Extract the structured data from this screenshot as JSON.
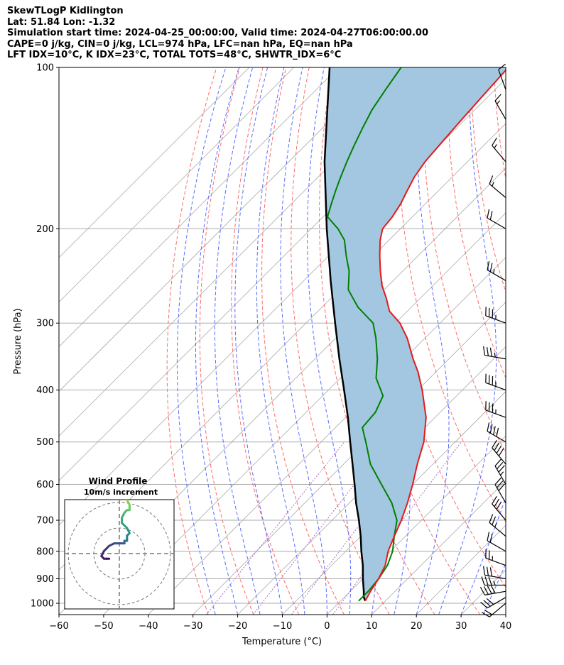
{
  "header": {
    "line1": "SkewTLogP Kidlington",
    "line2": "Lat: 51.84   Lon: -1.32",
    "line3": "Simulation start time: 2024-04-25_00:00:00, Valid time: 2024-04-27T06:00:00.00",
    "line4": "CAPE=0 j/kg, CIN=0 j/kg, LCL=974 hPa, LFC=nan hPa, EQ=nan hPa",
    "line5": "LFT IDX=10°C, K IDX=23°C, TOTAL TOTS=48°C, SHWTR_IDX=6°C"
  },
  "colors": {
    "temperature": "#e31a1c",
    "dewpoint": "#008000",
    "parcel": "#000000",
    "cape_fill": "#a3c7e0",
    "dry_adiabat": "#ff6a6a",
    "moist_adiabat": "#5a6cff",
    "mixing_ratio": "#b070c8",
    "isotherm": "#aaaaaa"
  },
  "chart_data": {
    "type": "line",
    "title": "",
    "xlabel": "Temperature (°C)",
    "ylabel": "Pressure (hPa)",
    "xlim": [
      -60,
      40
    ],
    "ylim": [
      1050,
      100
    ],
    "yscale": "log",
    "skew": true,
    "grid": true,
    "x_ticks": [
      "−60",
      "−50",
      "−40",
      "−30",
      "−20",
      "−10",
      "0",
      "10",
      "20",
      "30",
      "40"
    ],
    "x_tick_values": [
      -60,
      -50,
      -40,
      -30,
      -20,
      -10,
      0,
      10,
      20,
      30,
      40
    ],
    "y_ticks": [
      "100",
      "200",
      "300",
      "400",
      "500",
      "600",
      "700",
      "800",
      "900",
      "1000"
    ],
    "y_tick_values": [
      100,
      200,
      300,
      400,
      500,
      600,
      700,
      800,
      900,
      1000
    ],
    "series": [
      {
        "key": "temperature",
        "pressure": [
          990,
          950,
          900,
          850,
          800,
          750,
          700,
          650,
          600,
          550,
          500,
          450,
          400,
          370,
          350,
          320,
          300,
          285,
          270,
          255,
          240,
          225,
          210,
          200,
          190,
          180,
          170,
          160,
          150,
          140,
          130,
          120,
          110,
          100
        ],
        "values": [
          5.5,
          4.5,
          3.5,
          2.0,
          -0.5,
          -2.5,
          -4.5,
          -7.0,
          -10.0,
          -13.5,
          -17.0,
          -22.0,
          -29.0,
          -34.0,
          -38.0,
          -44.0,
          -49.0,
          -54.0,
          -57.5,
          -61.5,
          -65.0,
          -68.5,
          -72.0,
          -74.0,
          -74.5,
          -75.5,
          -77.0,
          -78.5,
          -79.5,
          -80.0,
          -80.5,
          -81.0,
          -81.5,
          -82.0
        ]
      },
      {
        "key": "dewpoint",
        "pressure": [
          990,
          950,
          900,
          850,
          800,
          750,
          700,
          650,
          600,
          550,
          500,
          470,
          440,
          410,
          380,
          350,
          320,
          300,
          280,
          260,
          240,
          225,
          210,
          200,
          190,
          180,
          170,
          160,
          150,
          140,
          130,
          120,
          110,
          100
        ],
        "values": [
          4.0,
          4.0,
          3.5,
          2.5,
          0.5,
          -2.5,
          -5.5,
          -10.5,
          -17.0,
          -24.0,
          -30.0,
          -34.0,
          -34.5,
          -36.5,
          -42.0,
          -46.0,
          -51.0,
          -55.0,
          -62.0,
          -68.0,
          -72.0,
          -76.0,
          -80.0,
          -84.0,
          -89.0,
          -91.0,
          -93.0,
          -95.0,
          -97.0,
          -99.0,
          -101.0,
          -103.0,
          -104.5,
          -106.0
        ]
      },
      {
        "key": "parcel",
        "pressure": [
          990,
          974,
          950,
          900,
          850,
          800,
          750,
          700,
          650,
          600,
          550,
          500,
          450,
          400,
          350,
          300,
          250,
          200,
          150,
          100
        ],
        "values": [
          5.5,
          4.3,
          3.0,
          0.0,
          -3.0,
          -6.5,
          -10.0,
          -14.0,
          -18.5,
          -23.0,
          -28.0,
          -33.5,
          -39.5,
          -46.5,
          -54.5,
          -63.5,
          -74.0,
          -86.5,
          -102.0,
          -122.0
        ]
      }
    ],
    "wind_barbs": {
      "pressure": [
        1000,
        975,
        950,
        925,
        900,
        850,
        800,
        750,
        700,
        650,
        600,
        550,
        500,
        450,
        400,
        350,
        300,
        250,
        200,
        175,
        150,
        125,
        110
      ],
      "speed_kt": [
        20,
        30,
        40,
        35,
        30,
        25,
        20,
        25,
        30,
        30,
        35,
        40,
        40,
        35,
        35,
        35,
        35,
        25,
        20,
        15,
        15,
        15,
        10
      ],
      "direction_deg": [
        230,
        240,
        260,
        270,
        280,
        290,
        300,
        310,
        320,
        330,
        330,
        320,
        300,
        290,
        290,
        280,
        290,
        300,
        300,
        310,
        320,
        330,
        340
      ]
    },
    "inset": {
      "title": "Wind Profile",
      "subtitle": "10m/s increment",
      "type": "hodograph",
      "u": [
        -4,
        -5,
        -6,
        -7,
        -6,
        -4,
        -2,
        1,
        2,
        2,
        3,
        3,
        3,
        4,
        3,
        1,
        1,
        2,
        3,
        4,
        4,
        3,
        4,
        3,
        2,
        2,
        3
      ],
      "v": [
        -2,
        -2,
        -2,
        -1,
        1,
        3,
        4,
        4,
        4,
        5,
        5,
        6,
        7,
        8,
        10,
        12,
        14,
        16,
        17,
        17,
        19,
        21,
        22,
        23,
        24,
        23,
        22
      ]
    }
  }
}
